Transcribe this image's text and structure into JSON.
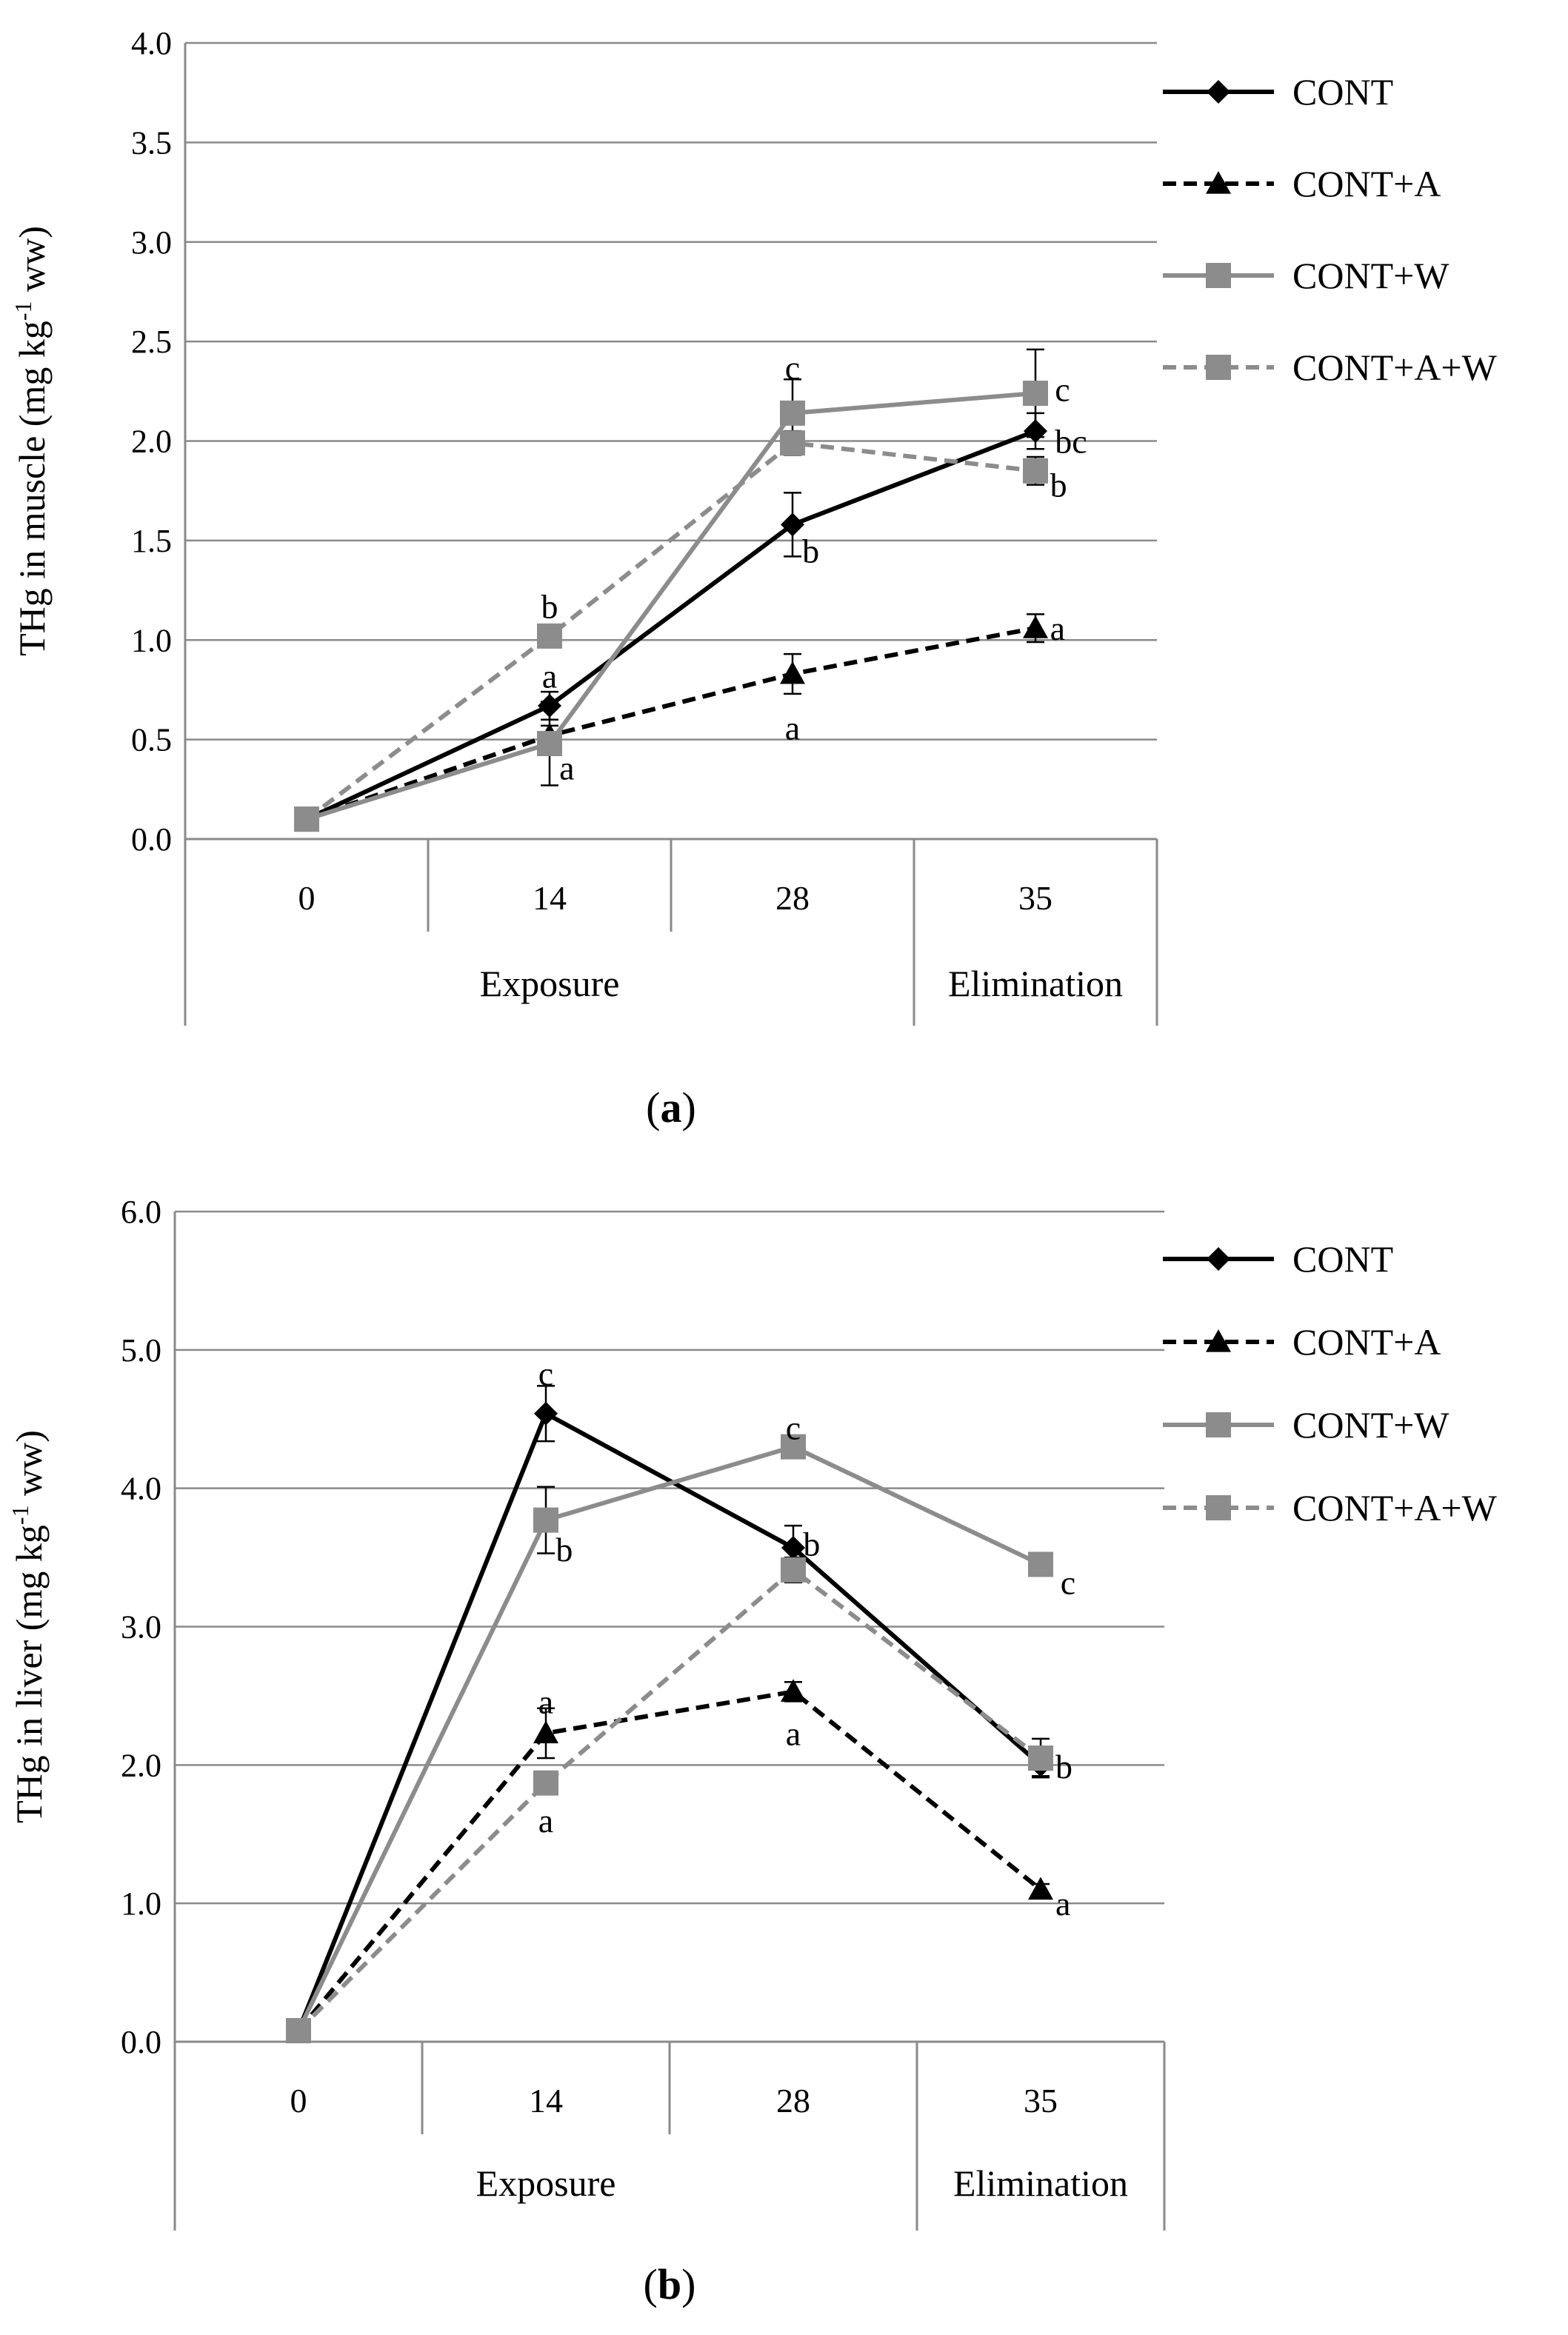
{
  "chart_data": [
    {
      "panel_label": "a",
      "type": "line",
      "ylabel_main": "THg in muscle (mg kg",
      "ylabel_sup": "-1",
      "ylabel_tail": " ww)",
      "ylim": [
        0,
        4
      ],
      "ytick_step": 0.5,
      "ytick_labels": [
        "0.0",
        "0.5",
        "1.0",
        "1.5",
        "2.0",
        "2.5",
        "3.0",
        "3.5",
        "4.0"
      ],
      "categories": [
        "0",
        "14",
        "28",
        "35"
      ],
      "groups": [
        {
          "label": "Exposure",
          "span": [
            0,
            2
          ]
        },
        {
          "label": "Elimination",
          "span": [
            3,
            3
          ]
        }
      ],
      "grid": true,
      "legend_position": "right",
      "series": [
        {
          "name": "CONT",
          "color": "#000000",
          "dash": false,
          "marker": "diamond",
          "values": [
            0.1,
            0.67,
            1.58,
            2.05
          ],
          "errors": [
            0,
            0.07,
            0.16,
            0.09
          ]
        },
        {
          "name": "CONT+A",
          "color": "#000000",
          "dash": true,
          "marker": "triangle",
          "values": [
            0.1,
            0.52,
            0.83,
            1.06
          ],
          "errors": [
            0,
            0.05,
            0.1,
            0.07
          ]
        },
        {
          "name": "CONT+W",
          "color": "#8c8c8c",
          "dash": false,
          "marker": "square",
          "values": [
            0.1,
            0.48,
            2.14,
            2.24
          ],
          "errors": [
            0,
            0.21,
            0.17,
            0.22
          ]
        },
        {
          "name": "CONT+A+W",
          "color": "#8c8c8c",
          "dash": true,
          "marker": "square",
          "values": [
            0.1,
            1.02,
            1.99,
            1.85
          ],
          "errors": [
            0,
            0.04,
            0.06,
            0.07
          ]
        }
      ],
      "annotations": [
        {
          "text": "b",
          "x": 1,
          "y": 1.17,
          "anchor": "middle"
        },
        {
          "text": "a",
          "x": 1,
          "y": 0.82,
          "anchor": "middle"
        },
        {
          "text": "a",
          "x": 1.04,
          "y": 0.36,
          "anchor": "start"
        },
        {
          "text": "c",
          "x": 2,
          "y": 2.37,
          "anchor": "middle"
        },
        {
          "text": "b",
          "x": 2.04,
          "y": 1.45,
          "anchor": "start"
        },
        {
          "text": "a",
          "x": 2,
          "y": 0.56,
          "anchor": "middle"
        },
        {
          "text": "c",
          "x": 3.08,
          "y": 2.26,
          "anchor": "start"
        },
        {
          "text": "bc",
          "x": 3.08,
          "y": 2.0,
          "anchor": "start"
        },
        {
          "text": "b",
          "x": 3.06,
          "y": 1.78,
          "anchor": "start"
        },
        {
          "text": "a",
          "x": 3.06,
          "y": 1.06,
          "anchor": "start"
        }
      ]
    },
    {
      "panel_label": "b",
      "type": "line",
      "ylabel_main": "THg in liver (mg kg",
      "ylabel_sup": "-1",
      "ylabel_tail": " ww)",
      "ylim": [
        0,
        6
      ],
      "ytick_step": 1,
      "ytick_labels": [
        "0.0",
        "1.0",
        "2.0",
        "3.0",
        "4.0",
        "5.0",
        "6.0"
      ],
      "categories": [
        "0",
        "14",
        "28",
        "35"
      ],
      "groups": [
        {
          "label": "Exposure",
          "span": [
            0,
            2
          ]
        },
        {
          "label": "Elimination",
          "span": [
            3,
            3
          ]
        }
      ],
      "grid": true,
      "legend_position": "right",
      "series": [
        {
          "name": "CONT",
          "color": "#000000",
          "dash": false,
          "marker": "diamond",
          "values": [
            0.08,
            4.54,
            3.57,
            2.0
          ],
          "errors": [
            0,
            0.2,
            0.16,
            0.08
          ]
        },
        {
          "name": "CONT+A",
          "color": "#000000",
          "dash": true,
          "marker": "triangle",
          "values": [
            0.08,
            2.23,
            2.53,
            1.1
          ],
          "errors": [
            0,
            0.18,
            0.07,
            0.04
          ]
        },
        {
          "name": "CONT+W",
          "color": "#8c8c8c",
          "dash": false,
          "marker": "square",
          "values": [
            0.08,
            3.77,
            4.3,
            3.45
          ],
          "errors": [
            0,
            0.24,
            0.08,
            0.05
          ]
        },
        {
          "name": "CONT+A+W",
          "color": "#8c8c8c",
          "dash": true,
          "marker": "square",
          "values": [
            0.08,
            1.87,
            3.41,
            2.05
          ],
          "errors": [
            0,
            0.05,
            0.09,
            0.14
          ]
        }
      ],
      "annotations": [
        {
          "text": "c",
          "x": 1,
          "y": 4.83,
          "anchor": "middle"
        },
        {
          "text": "b",
          "x": 1.04,
          "y": 3.56,
          "anchor": "start"
        },
        {
          "text": "a",
          "x": 1,
          "y": 2.46,
          "anchor": "middle"
        },
        {
          "text": "a",
          "x": 1,
          "y": 1.6,
          "anchor": "middle"
        },
        {
          "text": "c",
          "x": 2,
          "y": 4.44,
          "anchor": "middle"
        },
        {
          "text": "b",
          "x": 2.04,
          "y": 3.6,
          "anchor": "start"
        },
        {
          "text": "a",
          "x": 2,
          "y": 2.23,
          "anchor": "middle"
        },
        {
          "text": "c",
          "x": 3.08,
          "y": 3.32,
          "anchor": "start"
        },
        {
          "text": "b",
          "x": 3.06,
          "y": 1.99,
          "anchor": "start"
        },
        {
          "text": "a",
          "x": 3.06,
          "y": 1.0,
          "anchor": "start"
        }
      ]
    }
  ]
}
